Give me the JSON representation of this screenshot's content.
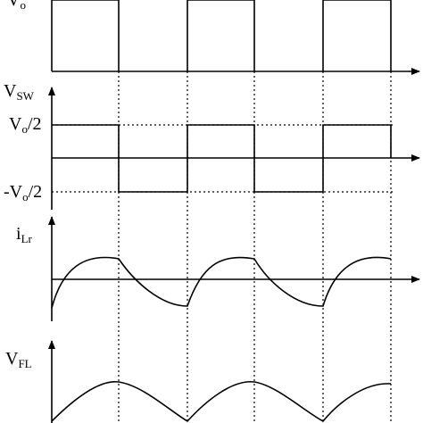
{
  "labels": {
    "vo": {
      "main": "V",
      "sub": "o"
    },
    "vsw": {
      "main": "V",
      "sub": "SW"
    },
    "vo_half": {
      "main": "V",
      "sub": "o",
      "suffix": "/2"
    },
    "neg_vo_half": {
      "prefix": "-",
      "main": "V",
      "sub": "o",
      "suffix": "/2"
    },
    "ilr": {
      "main": "i",
      "sub": "Lr"
    },
    "vfl": {
      "main": "V",
      "sub": "FL"
    }
  }
}
